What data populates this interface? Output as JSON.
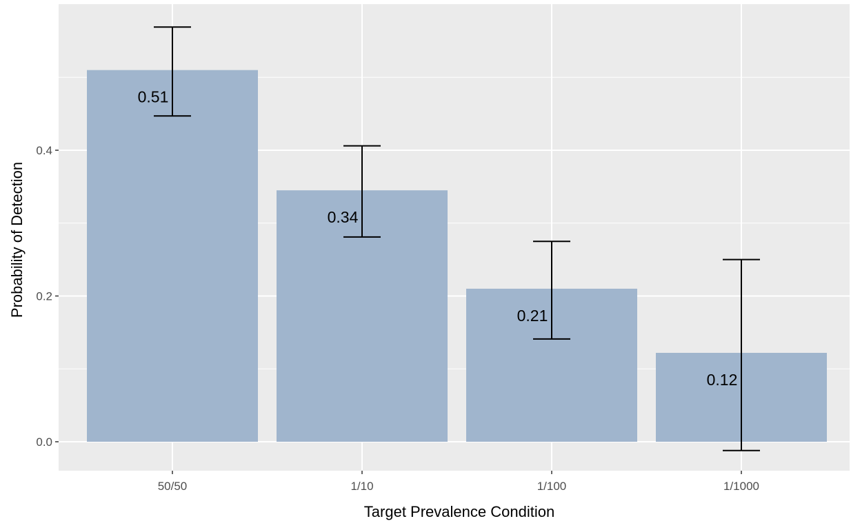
{
  "chart_data": {
    "type": "bar",
    "categories": [
      "50/50",
      "1/10",
      "1/100",
      "1/1000"
    ],
    "values": [
      0.51,
      0.345,
      0.21,
      0.122
    ],
    "data_labels": [
      "0.51",
      "0.34",
      "0.21",
      "0.12"
    ],
    "error_bars": {
      "lower": [
        0.447,
        0.281,
        0.141,
        -0.012
      ],
      "upper": [
        0.569,
        0.406,
        0.275,
        0.25
      ]
    },
    "xlabel": "Target Prevalence Condition",
    "ylabel": "Probability of Detection",
    "ylim": [
      -0.04,
      0.6
    ],
    "y_ticks": [
      0.0,
      0.2,
      0.4
    ],
    "y_tick_labels": [
      "0.0",
      "0.2",
      "0.4"
    ],
    "grid": true,
    "legend": "none",
    "colors": {
      "bar": "#a0b5cd",
      "panel_background": "#ebebeb",
      "grid": "#ffffff",
      "error_bar": "#000000"
    }
  }
}
